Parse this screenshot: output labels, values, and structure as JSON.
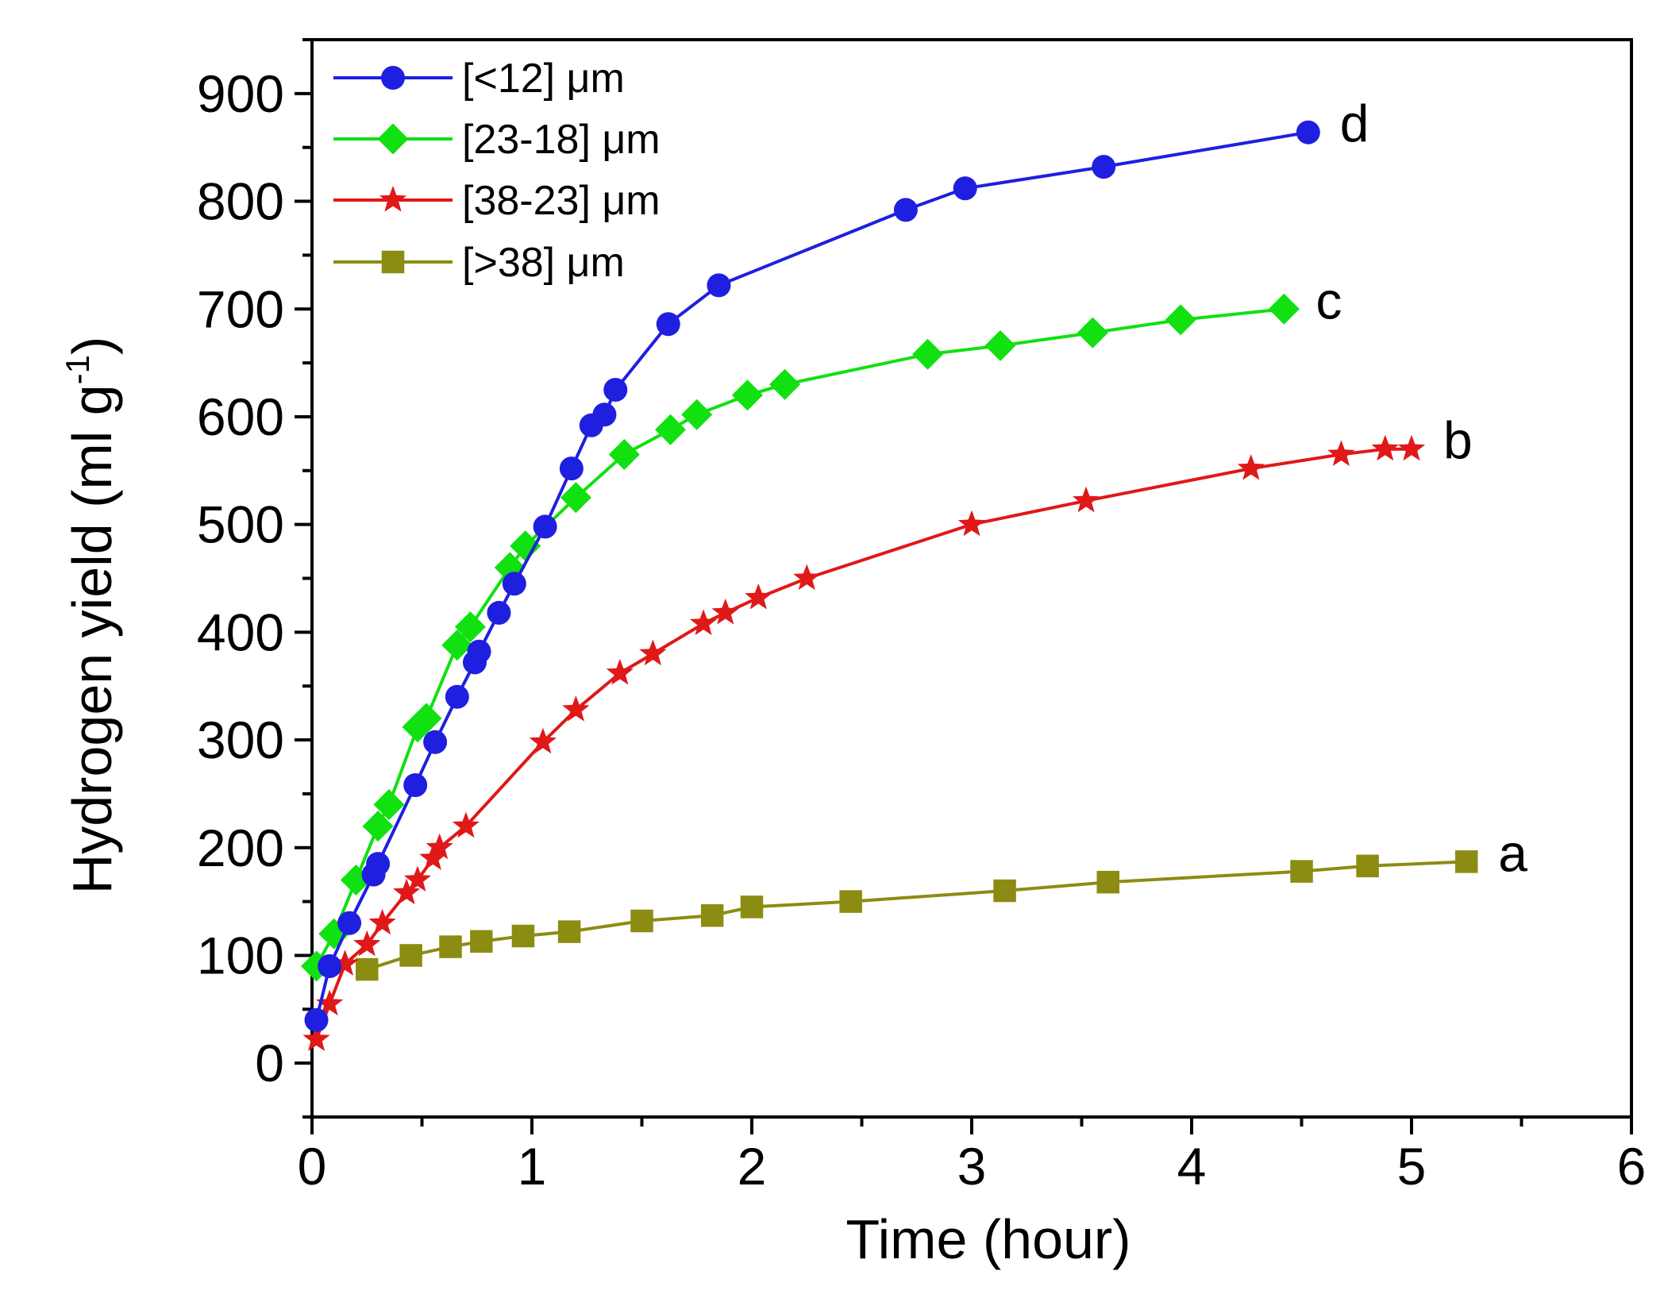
{
  "chart_data": {
    "type": "line",
    "xlabel": "Time (hour)",
    "ylabel": {
      "main": "Hydrogen yield (ml g",
      "superscript": "-1",
      "close": ")"
    },
    "xlim": [
      0,
      6
    ],
    "ylim": [
      -50,
      950
    ],
    "xticks": [
      "0",
      "1",
      "2",
      "3",
      "4",
      "5",
      "6"
    ],
    "yticks": [
      "0",
      "100",
      "200",
      "300",
      "400",
      "500",
      "600",
      "700",
      "800",
      "900"
    ],
    "legend_position": "top-left",
    "series": [
      {
        "name": "[<12] μm",
        "label": "d",
        "color": "#1f1fe0",
        "marker": "circle",
        "x": [
          0.02,
          0.08,
          0.17,
          0.28,
          0.3,
          0.47,
          0.56,
          0.66,
          0.74,
          0.76,
          0.85,
          0.92,
          1.06,
          1.18,
          1.27,
          1.33,
          1.38,
          1.62,
          1.85,
          2.7,
          2.97,
          3.6,
          4.53
        ],
        "y": [
          40,
          90,
          130,
          175,
          185,
          258,
          298,
          340,
          372,
          382,
          418,
          445,
          498,
          552,
          592,
          602,
          625,
          686,
          722,
          792,
          812,
          832,
          864
        ]
      },
      {
        "name": "[23-18] μm",
        "label": "c",
        "color": "#11e011",
        "marker": "diamond",
        "x": [
          0.02,
          0.1,
          0.2,
          0.3,
          0.35,
          0.48,
          0.52,
          0.66,
          0.72,
          0.9,
          0.97,
          1.2,
          1.42,
          1.63,
          1.75,
          1.98,
          2.15,
          2.8,
          3.13,
          3.55,
          3.95,
          4.42
        ],
        "y": [
          90,
          120,
          170,
          220,
          240,
          312,
          320,
          388,
          405,
          460,
          480,
          525,
          565,
          588,
          602,
          620,
          630,
          658,
          666,
          678,
          690,
          700
        ]
      },
      {
        "name": "[38-23] μm",
        "label": "b",
        "color": "#e01818",
        "marker": "star",
        "x": [
          0.02,
          0.08,
          0.15,
          0.25,
          0.32,
          0.43,
          0.48,
          0.55,
          0.58,
          0.7,
          1.05,
          1.2,
          1.4,
          1.55,
          1.78,
          1.88,
          2.03,
          2.25,
          3.0,
          3.52,
          4.27,
          4.68,
          4.88,
          5.0
        ],
        "y": [
          22,
          55,
          92,
          110,
          130,
          158,
          170,
          190,
          200,
          220,
          298,
          328,
          362,
          380,
          408,
          418,
          432,
          450,
          500,
          522,
          552,
          565,
          570,
          570
        ]
      },
      {
        "name": "[>38] μm",
        "label": "a",
        "color": "#8c8c12",
        "marker": "square",
        "x": [
          0.25,
          0.45,
          0.63,
          0.77,
          0.96,
          1.17,
          1.5,
          1.82,
          2.0,
          2.45,
          3.15,
          3.62,
          4.5,
          4.8,
          5.25
        ],
        "y": [
          87,
          100,
          108,
          113,
          118,
          122,
          132,
          137,
          145,
          150,
          160,
          168,
          178,
          183,
          187
        ]
      }
    ]
  }
}
